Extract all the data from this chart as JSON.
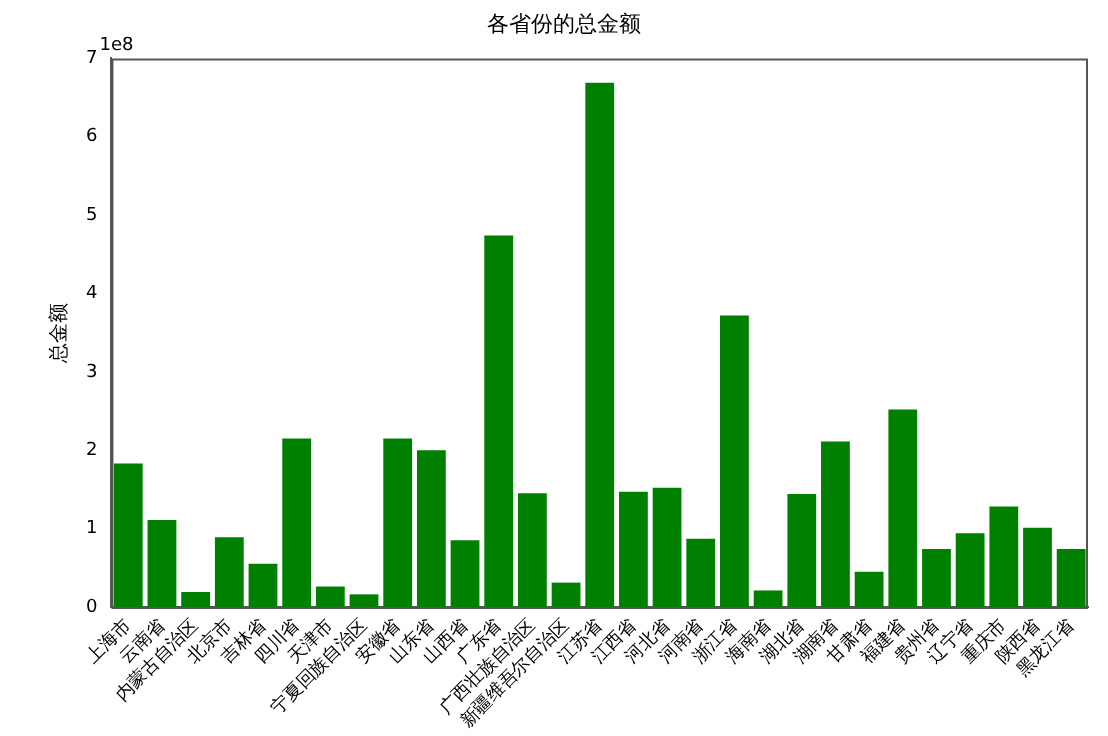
{
  "chart_data": {
    "type": "bar",
    "title": "各省份的总金额",
    "ylabel": "总金额",
    "annotations": [
      "1e8"
    ],
    "categories": [
      "上海市",
      "云南省",
      "内蒙古自治区",
      "北京市",
      "吉林省",
      "四川省",
      "天津市",
      "宁夏回族自治区",
      "安徽省",
      "山东省",
      "山西省",
      "广东省",
      "广西壮族自治区",
      "新疆维吾尔自治区",
      "江苏省",
      "江西省",
      "河北省",
      "河南省",
      "浙江省",
      "海南省",
      "湖北省",
      "湖南省",
      "甘肃省",
      "福建省",
      "贵州省",
      "辽宁省",
      "重庆市",
      "陕西省",
      "黑龙江省"
    ],
    "values": [
      1.83,
      1.11,
      0.19,
      0.89,
      0.55,
      2.15,
      0.26,
      0.16,
      2.15,
      2.0,
      0.85,
      4.74,
      1.45,
      0.31,
      6.69,
      1.47,
      1.52,
      0.87,
      3.72,
      0.21,
      1.44,
      2.11,
      0.45,
      2.52,
      0.74,
      0.94,
      1.28,
      1.01,
      0.74
    ],
    "color": "#008000",
    "ylim": [
      0,
      7
    ],
    "yticks": [
      0,
      1,
      2,
      3,
      4,
      5,
      6,
      7
    ],
    "grid": false,
    "legend": false
  }
}
